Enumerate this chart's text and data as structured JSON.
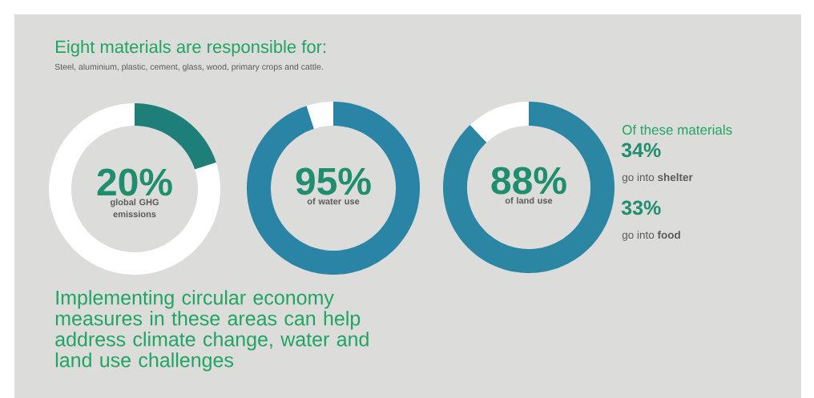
{
  "chart_data": [
    {
      "type": "donut",
      "title": "Eight materials are responsible for:",
      "subtitle": "Steel, aluminium, plastic, cement, glass, wood, primary crops and cattle.",
      "categories": [
        null,
        null
      ],
      "values": [
        20,
        80
      ],
      "colors": [
        "#1e7f78",
        "#ffffff"
      ],
      "annotations": [
        "20%",
        "global GHG emissions"
      ]
    },
    {
      "type": "donut",
      "categories": [
        null,
        null
      ],
      "values": [
        95,
        5
      ],
      "colors": [
        "#2a84a6",
        "#ffffff"
      ],
      "annotations": [
        "95%",
        "of water use"
      ]
    },
    {
      "type": "donut",
      "categories": [
        null,
        null
      ],
      "values": [
        88,
        12
      ],
      "colors": [
        "#2a86a2",
        "#ffffff"
      ],
      "annotations": [
        "88%",
        "of land use"
      ]
    },
    {
      "type": "other",
      "title": "Of these materials",
      "annotations": [
        "34%",
        "go into **shelter**",
        "33%",
        "go into **food**"
      ]
    },
    {
      "type": "other",
      "title": "Implementing circular economy measures in these areas can help address climate change, water and land use challenges"
    }
  ]
}
